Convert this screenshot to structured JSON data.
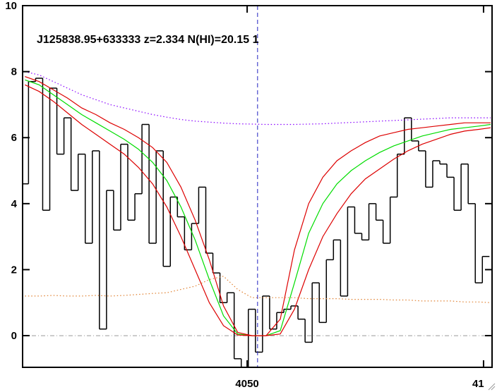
{
  "chart_data": {
    "type": "spectrum",
    "annotation": "J125838.95+633333 z=2.334 N(HI)=20.15 1",
    "xlim": [
      4002.5,
      4101.8
    ],
    "ylim": [
      -0.96,
      10
    ],
    "xticks": [
      4050,
      {
        "value": 4100,
        "label": "41"
      }
    ],
    "yticks": [
      0,
      2,
      4,
      6,
      8,
      10
    ],
    "vline": 4052.2,
    "vline_color": "#2020c0",
    "hline": 0,
    "hline_color": "#999999",
    "series": [
      {
        "style": "steps",
        "color": "#000000",
        "x": [
          4003,
          4004.5,
          4006,
          4007.5,
          4009,
          4010.5,
          4012,
          4013.5,
          4015,
          4016.5,
          4018,
          4019.5,
          4021,
          4022.5,
          4024,
          4025.5,
          4027,
          4028.5,
          4030,
          4031.5,
          4033,
          4034.5,
          4036,
          4037.5,
          4039,
          4040.5,
          4042,
          4043.5,
          4045,
          4046.5,
          4048,
          4049.5,
          4051,
          4052.5,
          4054,
          4055.5,
          4057,
          4058.5,
          4060,
          4061.5,
          4063,
          4064.5,
          4066,
          4067.5,
          4069,
          4070.5,
          4072,
          4073.5,
          4075,
          4076.5,
          4078,
          4079.5,
          4081,
          4082.5,
          4084,
          4085.5,
          4087,
          4088.5,
          4090,
          4091.5,
          4093,
          4094.5,
          4096,
          4097.5,
          4099,
          4100.5
        ],
        "values": [
          4.6,
          7.7,
          7.8,
          3.8,
          7.5,
          5.5,
          6.6,
          4.4,
          5.5,
          2.8,
          5.6,
          0.2,
          4.4,
          3.2,
          5.8,
          3.5,
          4.3,
          6.4,
          2.8,
          5.6,
          2.1,
          4.2,
          3.6,
          2.6,
          3.4,
          4.5,
          2.5,
          1.9,
          1.0,
          1.3,
          -0.7,
          -1.0,
          0.8,
          -0.5,
          1.2,
          0.2,
          0.7,
          0.8,
          0.9,
          0.5,
          -0.2,
          1.6,
          0.4,
          2.3,
          2.9,
          1.2,
          3.9,
          3.1,
          2.9,
          4.0,
          3.5,
          2.8,
          4.2,
          5.5,
          6.6,
          5.9,
          5.6,
          4.5,
          5.3,
          5.2,
          4.8,
          3.8,
          5.2,
          4.0,
          1.6,
          2.4
        ]
      },
      {
        "style": "line",
        "color": "#00dd00",
        "x": [
          4003,
          4006,
          4009,
          4012,
          4015,
          4018,
          4021,
          4024,
          4027,
          4030,
          4033,
          4036,
          4039,
          4042,
          4045,
          4048,
          4051,
          4054,
          4057,
          4060,
          4063,
          4066,
          4069,
          4072,
          4075,
          4078,
          4081,
          4084,
          4087,
          4090,
          4093,
          4096,
          4099,
          4101.5
        ],
        "values": [
          7.75,
          7.6,
          7.3,
          7.0,
          6.7,
          6.45,
          6.2,
          5.95,
          5.65,
          5.25,
          4.7,
          3.9,
          2.9,
          1.7,
          0.6,
          0.05,
          0,
          0,
          0.15,
          1.6,
          3.1,
          4.0,
          4.6,
          5.0,
          5.3,
          5.55,
          5.75,
          5.9,
          6.05,
          6.15,
          6.25,
          6.3,
          6.35,
          6.4
        ]
      },
      {
        "style": "line",
        "color": "#dd0000",
        "x": [
          4003,
          4006,
          4009,
          4012,
          4015,
          4018,
          4021,
          4024,
          4027,
          4030,
          4033,
          4036,
          4039,
          4042,
          4045,
          4048,
          4051,
          4054,
          4057,
          4060,
          4063,
          4066,
          4069,
          4072,
          4075,
          4078,
          4081,
          4084,
          4087,
          4090,
          4093,
          4096,
          4099,
          4101.5
        ],
        "values": [
          7.85,
          7.7,
          7.45,
          7.2,
          6.9,
          6.7,
          6.45,
          6.25,
          6.0,
          5.7,
          5.25,
          4.5,
          3.5,
          2.3,
          0.9,
          0.1,
          0,
          0,
          0.5,
          2.6,
          4.0,
          4.8,
          5.3,
          5.6,
          5.85,
          6.05,
          6.15,
          6.25,
          6.3,
          6.35,
          6.4,
          6.45,
          6.45,
          6.45
        ]
      },
      {
        "style": "line",
        "color": "#dd0000",
        "x": [
          4003,
          4006,
          4009,
          4012,
          4015,
          4018,
          4021,
          4024,
          4027,
          4030,
          4033,
          4036,
          4039,
          4042,
          4045,
          4048,
          4051,
          4054,
          4057,
          4060,
          4063,
          4066,
          4069,
          4072,
          4075,
          4078,
          4081,
          4084,
          4087,
          4090,
          4093,
          4096,
          4099,
          4101.5
        ],
        "values": [
          7.6,
          7.4,
          7.1,
          6.75,
          6.4,
          6.1,
          5.8,
          5.5,
          5.1,
          4.6,
          3.9,
          3.0,
          2.0,
          1.0,
          0.3,
          0.02,
          0,
          0,
          0.05,
          0.8,
          2.0,
          3.0,
          3.7,
          4.3,
          4.75,
          5.05,
          5.35,
          5.6,
          5.8,
          5.95,
          6.1,
          6.2,
          6.25,
          6.3
        ]
      },
      {
        "style": "dotted",
        "color": "#8800ff",
        "x": [
          4003,
          4006,
          4009,
          4012,
          4015,
          4018,
          4021,
          4024,
          4027,
          4030,
          4033,
          4036,
          4039,
          4042,
          4045,
          4048,
          4051,
          4054,
          4057,
          4060,
          4063,
          4066,
          4069,
          4072,
          4075,
          4078,
          4081,
          4084,
          4087,
          4090,
          4093,
          4096,
          4099,
          4101.5
        ],
        "values": [
          8.0,
          7.9,
          7.7,
          7.5,
          7.3,
          7.15,
          7.0,
          6.9,
          6.8,
          6.7,
          6.62,
          6.55,
          6.5,
          6.47,
          6.44,
          6.42,
          6.41,
          6.4,
          6.4,
          6.4,
          6.41,
          6.42,
          6.44,
          6.46,
          6.48,
          6.5,
          6.52,
          6.54,
          6.56,
          6.58,
          6.6,
          6.6,
          6.6,
          6.6
        ]
      },
      {
        "style": "dotted",
        "color": "#e08030",
        "x": [
          4003,
          4006,
          4009,
          4012,
          4015,
          4018,
          4021,
          4024,
          4027,
          4030,
          4033,
          4036,
          4039,
          4042,
          4045,
          4048,
          4051,
          4054,
          4057,
          4060,
          4063,
          4066,
          4069,
          4072,
          4075,
          4078,
          4081,
          4084,
          4087,
          4090,
          4093,
          4096,
          4099,
          4101.5
        ],
        "values": [
          1.2,
          1.2,
          1.22,
          1.2,
          1.2,
          1.22,
          1.2,
          1.22,
          1.25,
          1.28,
          1.3,
          1.4,
          1.5,
          1.7,
          1.8,
          1.4,
          1.15,
          1.15,
          1.15,
          1.15,
          1.12,
          1.12,
          1.12,
          1.1,
          1.1,
          1.1,
          1.08,
          1.08,
          1.05,
          1.05,
          1.05,
          1.02,
          1.02,
          1.0
        ]
      }
    ]
  }
}
